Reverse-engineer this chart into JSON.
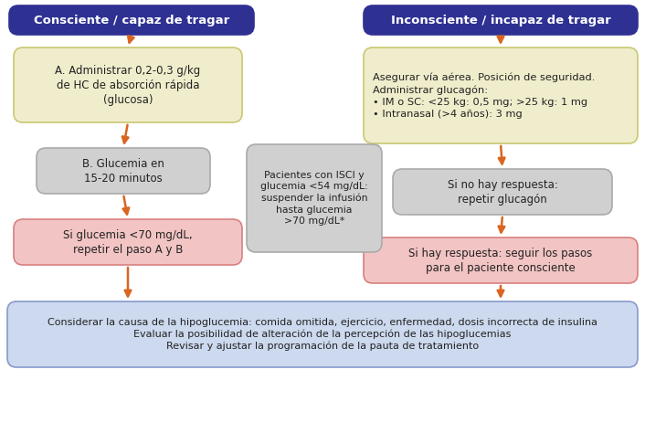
{
  "bg_color": "#ffffff",
  "header_left": "Consciente / capaz de tragar",
  "header_right": "Inconsciente / incapaz de tragar",
  "header_bg": "#2e3192",
  "header_fg": "#ffffff",
  "box_yellow_bg": "#f0edcc",
  "box_yellow_border": "#c8c870",
  "box_gray_bg": "#d0d0d0",
  "box_gray_border": "#aaaaaa",
  "box_pink_bg": "#f2c4c4",
  "box_pink_border": "#d88080",
  "box_blue_bg": "#ccd9ee",
  "box_blue_border": "#8899cc",
  "arrow_color": "#d96520",
  "text_color": "#222222",
  "box_left_yellow_text": "A. Administrar 0,2-0,3 g/kg\nde HC de absorción rápida\n(glucosa)",
  "box_left_gray_text": "B. Glucemia en\n15-20 minutos",
  "box_left_pink_text": "Si glucemia <70 mg/dL,\nrepetir el paso A y B",
  "box_right_yellow_text": "Asegurar vía aérea. Posición de seguridad.\nAdministrar glucagón:\n• IM o SC: <25 kg: 0,5 mg; >25 kg: 1 mg\n• Intranasal (>4 años): 3 mg",
  "box_right_gray1_text": "Si no hay respuesta:\nrepetir glucagón",
  "box_right_pink_text": "Si hay respuesta: seguir los pasos\npara el paciente consciente",
  "box_center_gray_text": "Pacientes con ISCI y\nglucemia <54 mg/dL:\nsuspender la infusión\nhasta glucemia\n>70 mg/dL*",
  "box_bottom_text": "Considerar la causa de la hipoglucemia: comida omitida, ejercicio, enfermedad, dosis incorrecta de insulina\nEvaluar la posibilidad de alteración de la percepción de las hipoglucemias\nRevisar y ajustar la programación de la pauta de tratamiento"
}
